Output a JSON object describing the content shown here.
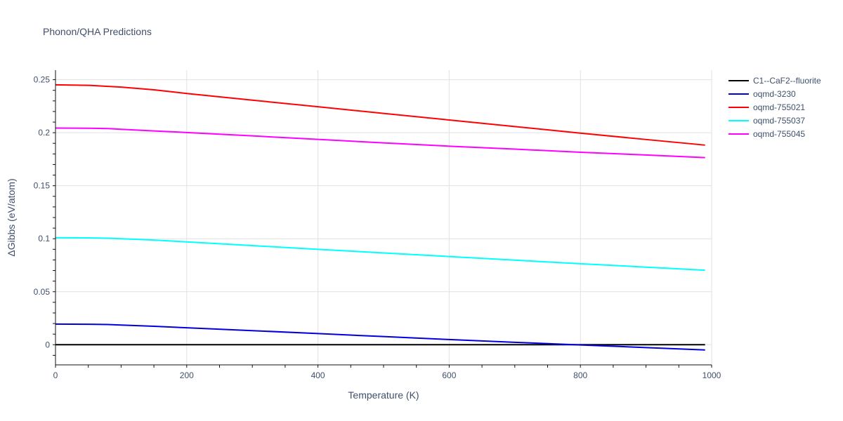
{
  "chart_data": {
    "type": "line",
    "title": "Phonon/QHA Predictions",
    "xlabel": "Temperature (K)",
    "ylabel": "ΔGibbs (eV/atom)",
    "xlim": [
      0,
      1000
    ],
    "ylim": [
      -0.019,
      0.259
    ],
    "x_ticks": [
      0,
      200,
      400,
      600,
      800,
      1000
    ],
    "x_tick_labels": [
      "0",
      "200",
      "400",
      "600",
      "800",
      "1000"
    ],
    "y_ticks": [
      0,
      0.05,
      0.1,
      0.15,
      0.2,
      0.25
    ],
    "y_tick_labels": [
      "0",
      "0.05",
      "0.1",
      "0.15",
      "0.2",
      "0.25"
    ],
    "grid": true,
    "legend_position": "right",
    "series": [
      {
        "name": "C1--CaF2--fluorite",
        "color": "#000000",
        "x": [
          0,
          100,
          200,
          300,
          400,
          500,
          600,
          700,
          800,
          900,
          990
        ],
        "y": [
          0,
          0,
          0,
          0,
          0,
          0,
          0,
          0,
          0,
          0,
          0
        ]
      },
      {
        "name": "oqmd-3230",
        "color": "#0000dd",
        "x": [
          0,
          50,
          80,
          100,
          150,
          200,
          300,
          400,
          500,
          600,
          700,
          800,
          900,
          990
        ],
        "y": [
          0.0195,
          0.0193,
          0.0191,
          0.0186,
          0.0174,
          0.016,
          0.0133,
          0.0105,
          0.0077,
          0.0049,
          0.0023,
          -0.0002,
          -0.0027,
          -0.0049
        ]
      },
      {
        "name": "oqmd-755021",
        "color": "#ff0000",
        "x": [
          0,
          50,
          80,
          100,
          150,
          200,
          300,
          400,
          500,
          600,
          700,
          800,
          900,
          990
        ],
        "y": [
          0.2452,
          0.2447,
          0.2437,
          0.243,
          0.2405,
          0.237,
          0.2307,
          0.2245,
          0.2182,
          0.212,
          0.2058,
          0.1996,
          0.1936,
          0.1883
        ]
      },
      {
        "name": "oqmd-755037",
        "color": "#00ffff",
        "x": [
          0,
          50,
          80,
          100,
          150,
          200,
          300,
          400,
          500,
          600,
          700,
          800,
          900,
          990
        ],
        "y": [
          0.101,
          0.1008,
          0.1005,
          0.1,
          0.0987,
          0.097,
          0.0935,
          0.09,
          0.0866,
          0.0832,
          0.0798,
          0.0764,
          0.0732,
          0.0703
        ]
      },
      {
        "name": "oqmd-755045",
        "color": "#ff00ff",
        "x": [
          0,
          50,
          80,
          100,
          150,
          200,
          300,
          400,
          500,
          600,
          700,
          800,
          900,
          990
        ],
        "y": [
          0.2044,
          0.2042,
          0.2039,
          0.2032,
          0.2017,
          0.2002,
          0.197,
          0.1937,
          0.1904,
          0.1873,
          0.1845,
          0.1816,
          0.179,
          0.1765
        ]
      }
    ]
  }
}
